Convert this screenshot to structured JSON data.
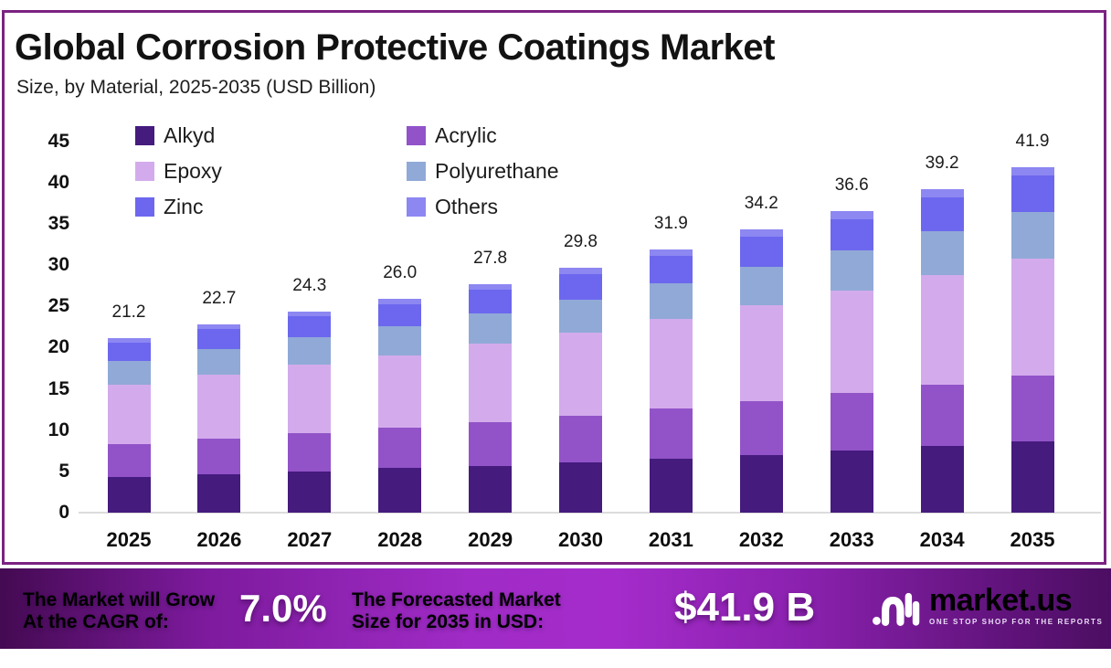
{
  "page": {
    "title": "Global Corrosion Protective Coatings Market",
    "subtitle": "Size, by Material, 2025-2035 (USD Billion)"
  },
  "colors": {
    "frame_border": "#7b2382",
    "axis_line": "#dcdcdc",
    "banner_gradient_start": "#440a52",
    "banner_gradient_mid": "#a52ccb",
    "banner_gradient_end": "#4c0e62",
    "text_dark": "#121212",
    "text_white": "#ffffff"
  },
  "chart_data": {
    "type": "bar",
    "stacked": true,
    "title": "Global Corrosion Protective Coatings Market Size, by Material, 2025-2035 (USD Billion)",
    "xlabel": "",
    "ylabel": "",
    "ylim": [
      0,
      45
    ],
    "yticks": [
      0,
      5,
      10,
      15,
      20,
      25,
      30,
      35,
      40,
      45
    ],
    "grid": false,
    "legend_position": "top-left",
    "categories": [
      "2025",
      "2026",
      "2027",
      "2028",
      "2029",
      "2030",
      "2031",
      "2032",
      "2033",
      "2034",
      "2035"
    ],
    "totals": [
      "21.2",
      "22.7",
      "24.3",
      "26.0",
      "27.8",
      "29.8",
      "31.9",
      "34.2",
      "36.6",
      "39.2",
      "41.9"
    ],
    "series": [
      {
        "name": "Alkyd",
        "color": "#451b7e",
        "values": [
          4.3,
          4.6,
          5.0,
          5.4,
          5.7,
          6.1,
          6.5,
          7.0,
          7.5,
          8.1,
          8.6
        ]
      },
      {
        "name": "Acrylic",
        "color": "#9253c8",
        "values": [
          4.0,
          4.3,
          4.6,
          4.9,
          5.3,
          5.7,
          6.1,
          6.5,
          7.0,
          7.4,
          8.0
        ]
      },
      {
        "name": "Epoxy",
        "color": "#d3abec",
        "values": [
          7.2,
          7.7,
          8.3,
          8.8,
          9.5,
          10.1,
          10.9,
          11.6,
          12.4,
          13.3,
          14.2
        ]
      },
      {
        "name": "Polyurethane",
        "color": "#90a9d7",
        "values": [
          2.9,
          3.1,
          3.3,
          3.5,
          3.7,
          4.0,
          4.3,
          4.6,
          4.9,
          5.3,
          5.7
        ]
      },
      {
        "name": "Zinc",
        "color": "#6c67ee",
        "values": [
          2.2,
          2.4,
          2.5,
          2.7,
          2.9,
          3.1,
          3.3,
          3.6,
          3.8,
          4.1,
          4.4
        ]
      },
      {
        "name": "Others",
        "color": "#8d87f2",
        "values": [
          0.6,
          0.6,
          0.6,
          0.7,
          0.7,
          0.8,
          0.8,
          0.9,
          1.0,
          1.0,
          1.0
        ]
      }
    ]
  },
  "banner": {
    "cagr_label_line1": "The Market will Grow",
    "cagr_label_line2": "At the CAGR of:",
    "cagr_value": "7.0%",
    "forecast_label_line1": "The Forecasted Market",
    "forecast_label_line2": "Size for 2035 in USD:",
    "forecast_value": "$41.9 B",
    "logo_name": "market.us",
    "logo_tagline": "ONE STOP SHOP FOR THE REPORTS"
  }
}
